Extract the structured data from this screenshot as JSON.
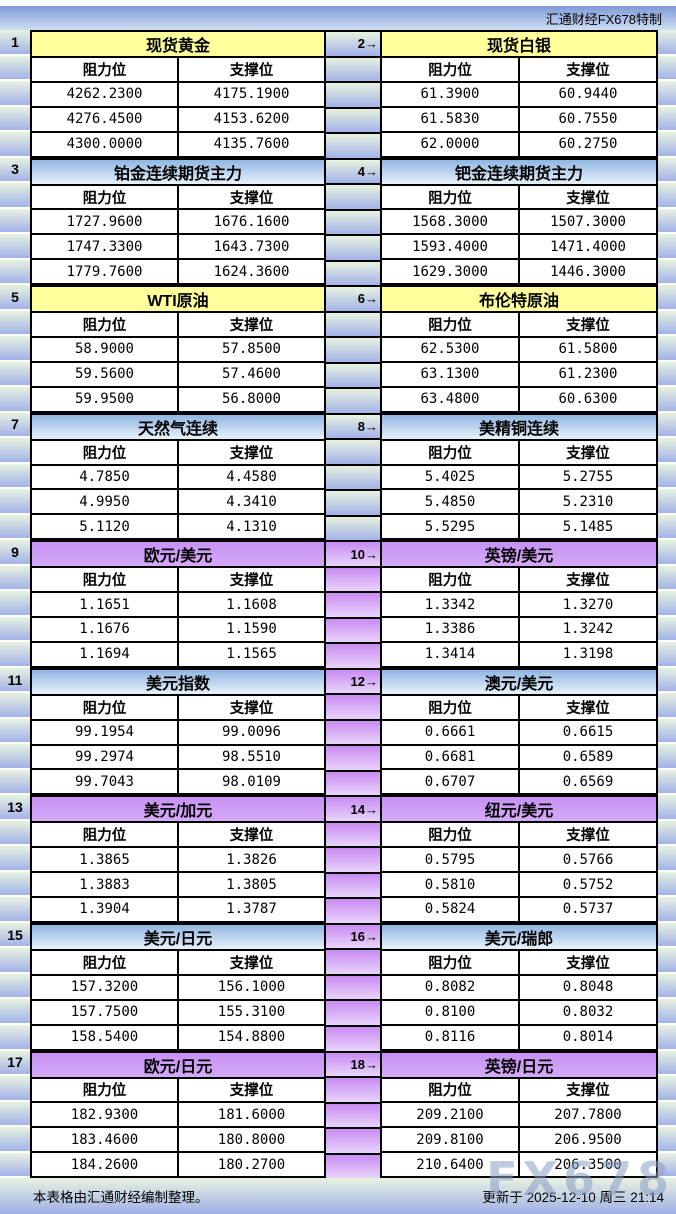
{
  "meta": {
    "brand_label": "汇通财经FX678特制",
    "footer_left": "本表格由汇通财经编制整理。",
    "footer_right": "更新于 2025-12-10 周三 21:14",
    "watermark": "FX678"
  },
  "columns": {
    "resistance": "阻力位",
    "support": "支撑位"
  },
  "colors": {
    "yellow_header": "#ffff9c",
    "blue_header_top": "#8fb6e2",
    "purple_header": "#cc99ff",
    "strip_green_top": "#e7f2e0",
    "strip_green_bottom": "#a3b2e8",
    "strip_purple_top": "#c98bf1",
    "strip_purple_bottom": "#e8d4fb",
    "top_band_blue": "#7f99d7"
  },
  "panels": [
    {
      "badge": "1",
      "title": "现货黄金",
      "style": "yellow",
      "r": [
        "4262.2300",
        "4276.4500",
        "4300.0000"
      ],
      "s": [
        "4175.1900",
        "4153.6200",
        "4135.7600"
      ]
    },
    {
      "badge": "2→",
      "title": "现货白银",
      "style": "yellow",
      "r": [
        "61.3900",
        "61.5830",
        "62.0000"
      ],
      "s": [
        "60.9440",
        "60.7550",
        "60.2750"
      ]
    },
    {
      "badge": "3",
      "title": "铂金连续期货主力",
      "style": "blue",
      "r": [
        "1727.9600",
        "1747.3300",
        "1779.7600"
      ],
      "s": [
        "1676.1600",
        "1643.7300",
        "1624.3600"
      ]
    },
    {
      "badge": "4→",
      "title": "钯金连续期货主力",
      "style": "blue",
      "r": [
        "1568.3000",
        "1593.4000",
        "1629.3000"
      ],
      "s": [
        "1507.3000",
        "1471.4000",
        "1446.3000"
      ]
    },
    {
      "badge": "5",
      "title": "WTI原油",
      "style": "yellow",
      "r": [
        "58.9000",
        "59.5600",
        "59.9500"
      ],
      "s": [
        "57.8500",
        "57.4600",
        "56.8000"
      ]
    },
    {
      "badge": "6→",
      "title": "布伦特原油",
      "style": "yellow",
      "r": [
        "62.5300",
        "63.1300",
        "63.4800"
      ],
      "s": [
        "61.5800",
        "61.2300",
        "60.6300"
      ]
    },
    {
      "badge": "7",
      "title": "天然气连续",
      "style": "blue",
      "r": [
        "4.7850",
        "4.9950",
        "5.1120"
      ],
      "s": [
        "4.4580",
        "4.3410",
        "4.1310"
      ]
    },
    {
      "badge": "8→",
      "title": "美精铜连续",
      "style": "blue",
      "r": [
        "5.4025",
        "5.4850",
        "5.5295"
      ],
      "s": [
        "5.2755",
        "5.2310",
        "5.1485"
      ]
    },
    {
      "badge": "9",
      "title": "欧元/美元",
      "style": "purple",
      "r": [
        "1.1651",
        "1.1676",
        "1.1694"
      ],
      "s": [
        "1.1608",
        "1.1590",
        "1.1565"
      ]
    },
    {
      "badge": "10→",
      "title": "英镑/美元",
      "style": "purple",
      "r": [
        "1.3342",
        "1.3386",
        "1.3414"
      ],
      "s": [
        "1.3270",
        "1.3242",
        "1.3198"
      ]
    },
    {
      "badge": "11",
      "title": "美元指数",
      "style": "blue",
      "r": [
        "99.1954",
        "99.2974",
        "99.7043"
      ],
      "s": [
        "99.0096",
        "98.5510",
        "98.0109"
      ]
    },
    {
      "badge": "12→",
      "title": "澳元/美元",
      "style": "blue",
      "r": [
        "0.6661",
        "0.6681",
        "0.6707"
      ],
      "s": [
        "0.6615",
        "0.6589",
        "0.6569"
      ]
    },
    {
      "badge": "13",
      "title": "美元/加元",
      "style": "purple",
      "r": [
        "1.3865",
        "1.3883",
        "1.3904"
      ],
      "s": [
        "1.3826",
        "1.3805",
        "1.3787"
      ]
    },
    {
      "badge": "14→",
      "title": "纽元/美元",
      "style": "purple",
      "r": [
        "0.5795",
        "0.5810",
        "0.5824"
      ],
      "s": [
        "0.5766",
        "0.5752",
        "0.5737"
      ]
    },
    {
      "badge": "15",
      "title": "美元/日元",
      "style": "blue",
      "r": [
        "157.3200",
        "157.7500",
        "158.5400"
      ],
      "s": [
        "156.1000",
        "155.3100",
        "154.8800"
      ]
    },
    {
      "badge": "16→",
      "title": "美元/瑞郎",
      "style": "blue",
      "r": [
        "0.8082",
        "0.8100",
        "0.8116"
      ],
      "s": [
        "0.8048",
        "0.8032",
        "0.8014"
      ]
    },
    {
      "badge": "17",
      "title": "欧元/日元",
      "style": "purple",
      "r": [
        "182.9300",
        "183.4600",
        "184.2600"
      ],
      "s": [
        "181.6000",
        "180.8000",
        "180.2700"
      ]
    },
    {
      "badge": "18→",
      "title": "英镑/日元",
      "style": "purple",
      "r": [
        "209.2100",
        "209.8100",
        "210.6400"
      ],
      "s": [
        "207.7800",
        "206.9500",
        "206.3500"
      ]
    }
  ]
}
